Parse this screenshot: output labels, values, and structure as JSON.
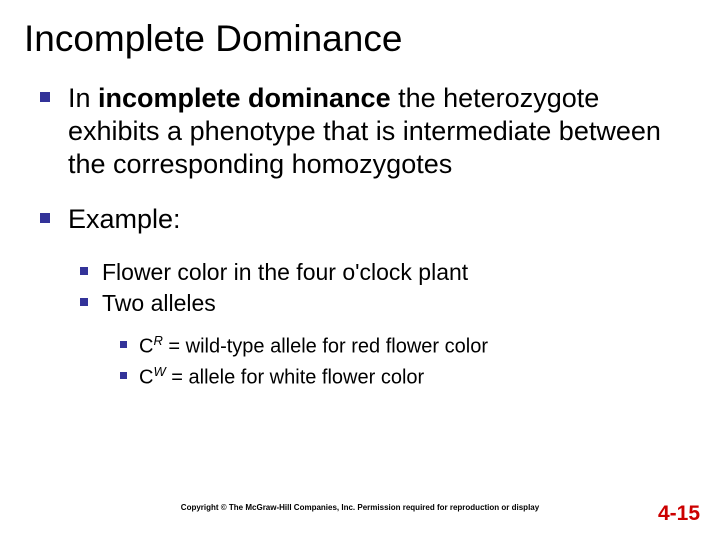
{
  "title": "Incomplete Dominance",
  "bullets": {
    "b1_prefix": "In ",
    "b1_bold": "incomplete dominance",
    "b1_rest": " the heterozygote exhibits a phenotype that is intermediate between the corresponding homozygotes",
    "b2": "Example:",
    "b2_sub1": "Flower color in the four o'clock plant",
    "b2_sub2": "Two alleles",
    "b2_sub2_a_sym": "C",
    "b2_sub2_a_sup": "R",
    "b2_sub2_a_rest": " = wild-type allele for red flower color",
    "b2_sub2_b_sym": "C",
    "b2_sub2_b_sup": "W",
    "b2_sub2_b_rest": " = allele for white flower color"
  },
  "copyright": "Copyright © The McGraw-Hill Companies, Inc. Permission required for reproduction or display",
  "slide_number": "4-15",
  "colors": {
    "bullet_square": "#333399",
    "slide_number": "#cc0000",
    "text": "#000000",
    "background": "#ffffff"
  }
}
